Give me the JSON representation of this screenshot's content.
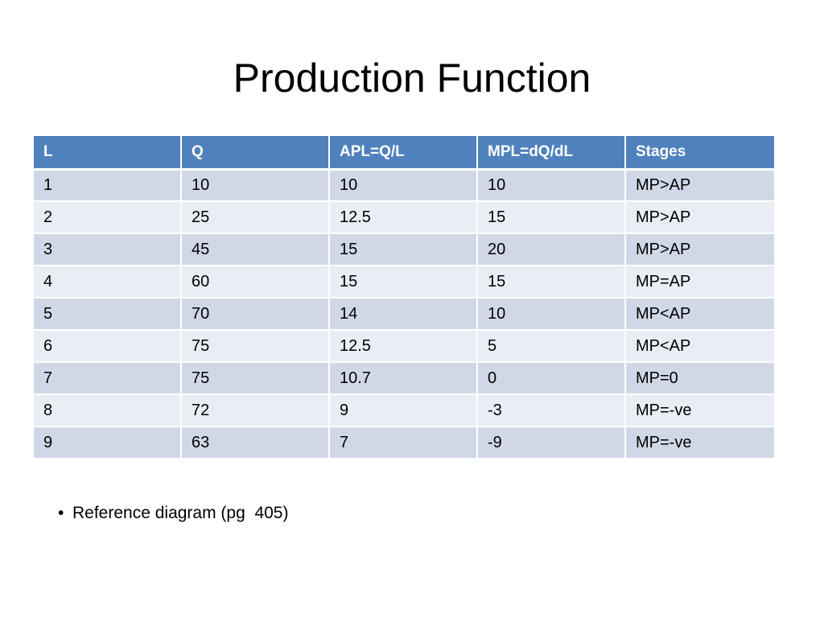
{
  "slide": {
    "title": "Production Function",
    "table": {
      "headers": [
        "L",
        "Q",
        "APL=Q/L",
        "MPL=dQ/dL",
        "Stages"
      ],
      "rows": [
        [
          "1",
          "10",
          "10",
          "10",
          "MP>AP"
        ],
        [
          "2",
          "25",
          "12.5",
          "15",
          "MP>AP"
        ],
        [
          "3",
          "45",
          "15",
          "20",
          "MP>AP"
        ],
        [
          "4",
          "60",
          "15",
          "15",
          "MP=AP"
        ],
        [
          "5",
          "70",
          "14",
          "10",
          "MP<AP"
        ],
        [
          "6",
          "75",
          "12.5",
          "5",
          "MP<AP"
        ],
        [
          "7",
          "75",
          "10.7",
          "0",
          "MP=0"
        ],
        [
          "8",
          "72",
          "9",
          "-3",
          "MP=-ve"
        ],
        [
          "9",
          "63",
          "7",
          "-9",
          "MP=-ve"
        ]
      ]
    },
    "bullets": [
      {
        "marker": "•",
        "text": "Reference diagram (pg  405)"
      }
    ]
  },
  "colors": {
    "header_bg": "#4f81bd",
    "row_odd_bg": "#d0d8e8",
    "row_even_bg": "#e9edf4"
  }
}
